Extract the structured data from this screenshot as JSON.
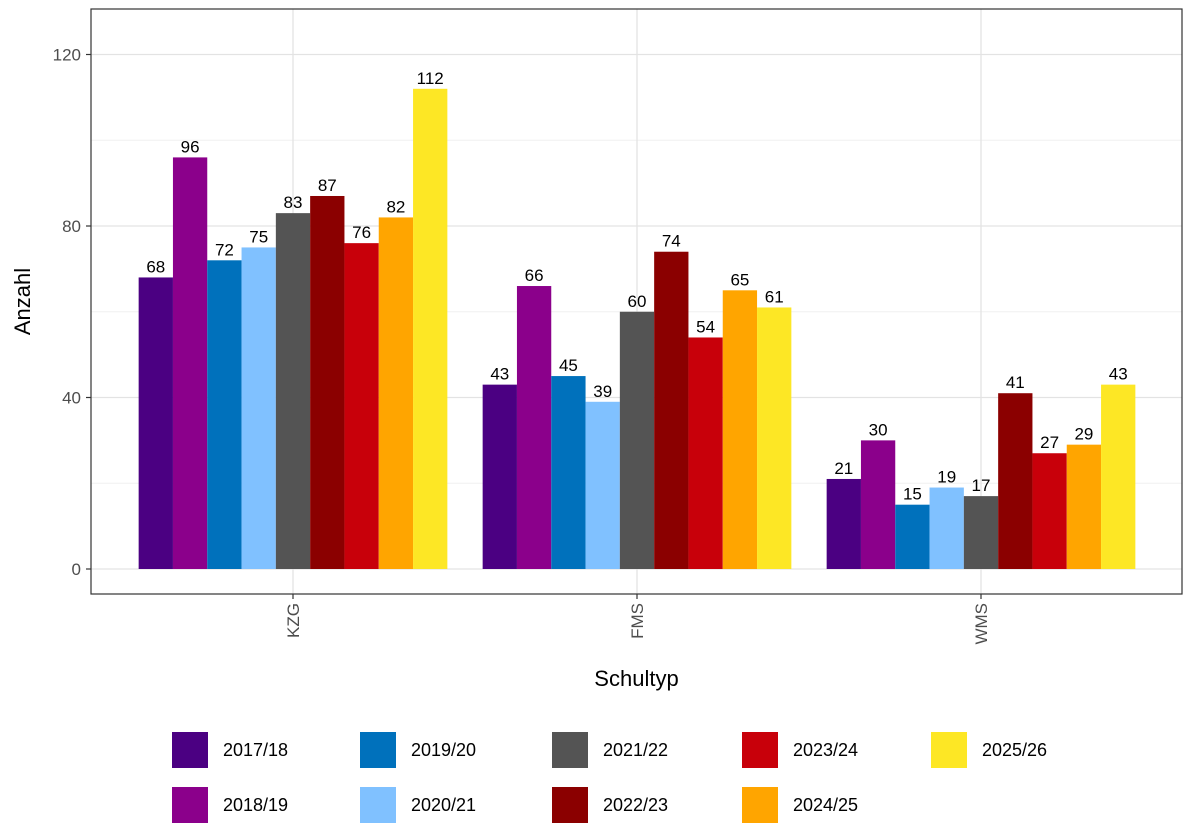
{
  "chart_data": {
    "type": "bar",
    "xlabel": "Schultyp",
    "ylabel": "Anzahl",
    "categories": [
      "KZG",
      "FMS",
      "WMS"
    ],
    "yticks": [
      0,
      40,
      80,
      120
    ],
    "ylim": [
      -6,
      132
    ],
    "grid": true,
    "legend_position": "bottom",
    "series": [
      {
        "name": "2017/18",
        "color": "#4b0082",
        "values": [
          68,
          43,
          21
        ]
      },
      {
        "name": "2018/19",
        "color": "#8b008b",
        "values": [
          96,
          66,
          30
        ]
      },
      {
        "name": "2019/20",
        "color": "#0071bc",
        "values": [
          72,
          45,
          15
        ]
      },
      {
        "name": "2020/21",
        "color": "#80c1ff",
        "values": [
          75,
          39,
          19
        ]
      },
      {
        "name": "2021/22",
        "color": "#545454",
        "values": [
          83,
          60,
          17
        ]
      },
      {
        "name": "2022/23",
        "color": "#8b0000",
        "values": [
          87,
          74,
          41
        ]
      },
      {
        "name": "2023/24",
        "color": "#c8000a",
        "values": [
          76,
          54,
          27
        ]
      },
      {
        "name": "2024/25",
        "color": "#ffa500",
        "values": [
          82,
          65,
          29
        ]
      },
      {
        "name": "2025/26",
        "color": "#fde725",
        "values": [
          112,
          61,
          43
        ]
      }
    ]
  }
}
